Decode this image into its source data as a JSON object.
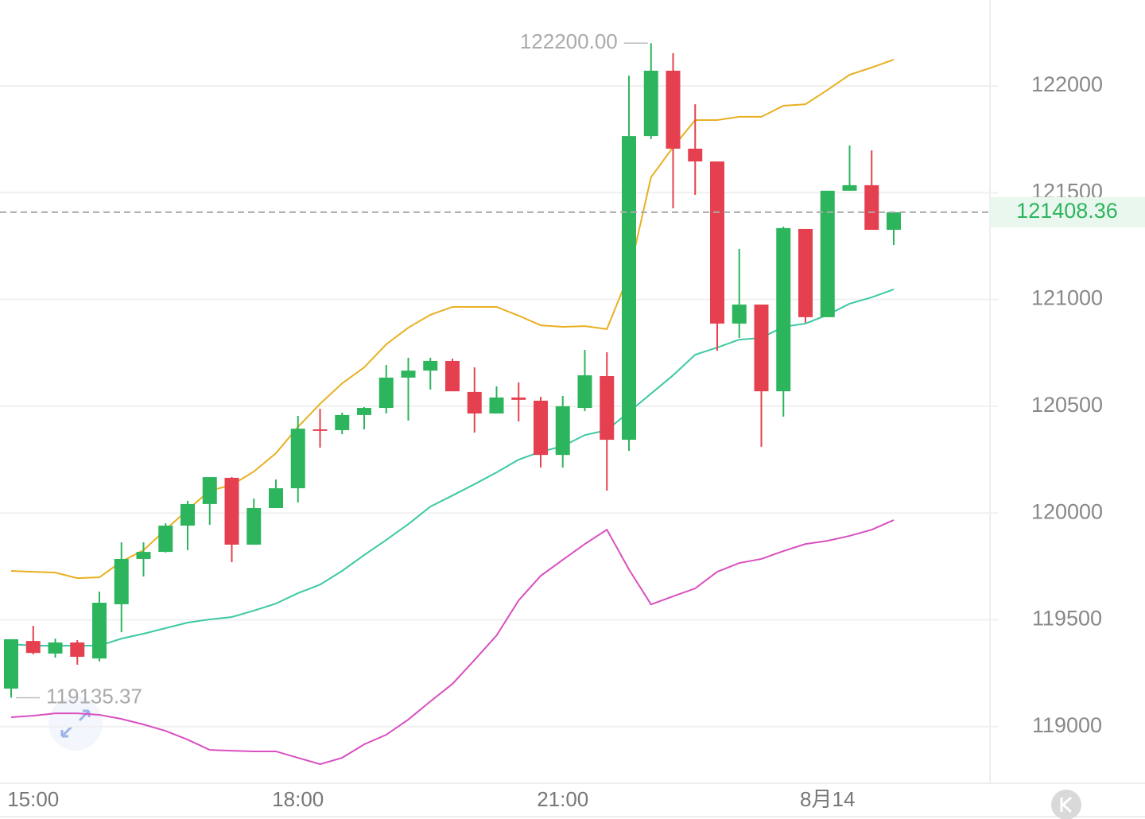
{
  "chart_data": {
    "type": "candlestick",
    "categories": [
      null,
      "15:00",
      null,
      null,
      null,
      null,
      null,
      null,
      null,
      null,
      null,
      null,
      null,
      "18:00",
      null,
      null,
      null,
      null,
      null,
      null,
      null,
      null,
      null,
      null,
      null,
      "21:00",
      null,
      null,
      null,
      null,
      null,
      null,
      null,
      null,
      null,
      null,
      null,
      "8月14",
      null,
      null,
      null
    ],
    "open": [
      119178,
      119401,
      119342,
      119394,
      119319,
      119573,
      119785,
      119818,
      119941,
      120042,
      120165,
      119852,
      120023,
      120116,
      120392,
      120388,
      120459,
      120492,
      120634,
      120667,
      120712,
      120567,
      120466,
      120541,
      120526,
      120272,
      120492,
      120641,
      120343,
      121765,
      122071,
      121706,
      121646,
      120887,
      120976,
      120570,
      121330,
      120917,
      121509,
      121535,
      121326
    ],
    "high": [
      119409,
      119472,
      119412,
      119405,
      119632,
      119863,
      119863,
      119952,
      120057,
      120168,
      120168,
      120068,
      120157,
      120455,
      120488,
      120470,
      120496,
      120693,
      120727,
      120727,
      120723,
      120682,
      120593,
      120611,
      120544,
      120548,
      120764,
      120753,
      122048,
      122200,
      122153,
      121914,
      121646,
      121237,
      120976,
      121341,
      121330,
      121509,
      121721,
      121698,
      121408.36
    ],
    "low": [
      119135.37,
      119338,
      119323,
      119290,
      119305,
      119442,
      119703,
      119815,
      119826,
      119945,
      119770,
      119852,
      120023,
      120049,
      120306,
      120369,
      120392,
      120466,
      120433,
      120578,
      120570,
      120377,
      120466,
      120429,
      120213,
      120213,
      120477,
      120105,
      120291,
      121751,
      121427,
      121490,
      120760,
      120820,
      120310,
      120451,
      120891,
      120917,
      121509,
      121326,
      121255
    ],
    "close": [
      119409,
      119345,
      119394,
      119327,
      119580,
      119785,
      119818,
      119941,
      120042,
      120168,
      119852,
      120023,
      120116,
      120395,
      120385,
      120459,
      120492,
      120634,
      120667,
      120712,
      120570,
      120466,
      120541,
      120530,
      120272,
      120500,
      120645,
      120343,
      121765,
      122071,
      121706,
      121646,
      120887,
      120976,
      120570,
      121334,
      120917,
      121509,
      121535,
      121326,
      121408.36
    ],
    "up_color": "#2db55d",
    "down_color": "#e5404f",
    "series": [
      {
        "color": "#e8b020",
        "values": [
          119729,
          119725,
          119721,
          119695,
          119699,
          119773,
          119826,
          119922,
          120015,
          120105,
          120131,
          120194,
          120280,
          120403,
          120511,
          120607,
          120682,
          120790,
          120868,
          120928,
          120965,
          120965,
          120965,
          120924,
          120879,
          120872,
          120875,
          120861,
          121117,
          121572,
          121713,
          121840,
          121840,
          121855,
          121855,
          121907,
          121914,
          121981,
          122052,
          122086,
          122123
        ]
      },
      {
        "color": "#3cc9a4",
        "values": [
          119386,
          119379,
          119379,
          119379,
          119379,
          119412,
          119435,
          119461,
          119487,
          119502,
          119513,
          119543,
          119576,
          119625,
          119665,
          119729,
          119803,
          119874,
          119948,
          120030,
          120082,
          120135,
          120190,
          120250,
          120287,
          120313,
          120365,
          120388,
          120473,
          120559,
          120645,
          120741,
          120775,
          120812,
          120820,
          120872,
          120887,
          120928,
          120980,
          121010,
          121047
        ]
      },
      {
        "color": "#d94fc0",
        "values": [
          119044,
          119051,
          119062,
          119062,
          119055,
          119036,
          119010,
          118980,
          118939,
          118891,
          118887,
          118884,
          118884,
          118854,
          118824,
          118854,
          118917,
          118962,
          119033,
          119118,
          119200,
          119312,
          119427,
          119591,
          119706,
          119781,
          119855,
          119922,
          119736,
          119572,
          119610,
          119647,
          119725,
          119766,
          119785,
          119822,
          119855,
          119870,
          119893,
          119922,
          119967
        ]
      }
    ],
    "ylim": [
      118735,
      122402
    ],
    "yticks": [
      119000,
      119500,
      120000,
      120500,
      121000,
      121500,
      122000
    ],
    "grid": true,
    "annotations": [
      {
        "label": "122200.00",
        "value": 122200,
        "index": 29
      },
      {
        "label": "119135.37",
        "value": 119135.37,
        "index": 0
      }
    ],
    "last_price": {
      "label": "121408.36",
      "value": 121408.36
    }
  }
}
